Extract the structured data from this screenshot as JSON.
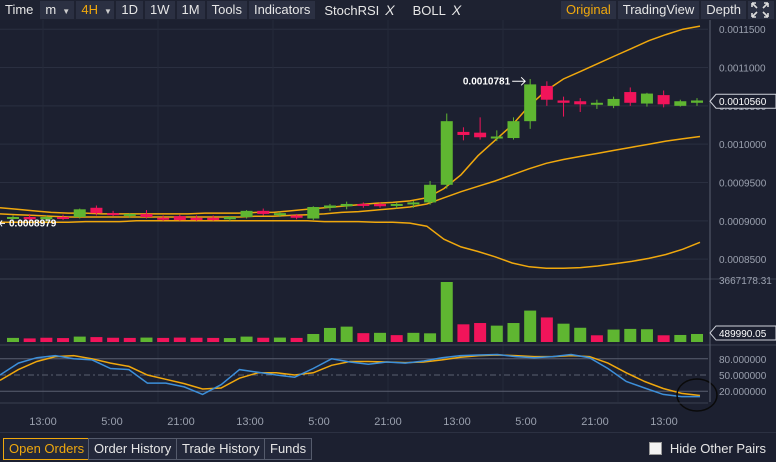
{
  "toolbar": {
    "time_label": "Time",
    "minute_label": "m",
    "interval_selected": "4H",
    "btn_1d": "1D",
    "btn_1w": "1W",
    "btn_1m": "1M",
    "tools": "Tools",
    "indicators": "Indicators",
    "stochrsi": "StochRSI",
    "boll": "BOLL",
    "remove_symbol": "X",
    "original": "Original",
    "tradingview": "TradingView",
    "depth": "Depth"
  },
  "colors": {
    "up": "#5fb631",
    "down": "#f1145a",
    "boll": "#f0a80d",
    "stoch_k": "#3d8fd9",
    "stoch_d": "#f0a80d",
    "accent": "#f0a80d"
  },
  "icons": {
    "fullscreen": "fullscreen-icon",
    "checkbox": "checkbox-icon"
  },
  "chart_data": [
    {
      "type": "candlestick",
      "name": "price",
      "y_ticks": [
        "0.0011500",
        "0.0011000",
        "0.0010500",
        "0.0010000",
        "0.0009500",
        "0.0009000",
        "0.0008500"
      ],
      "ylim": [
        0.000828,
        0.001162
      ],
      "current_price_label": "0.0010560",
      "high_annotation": "0.0010781",
      "low_annotation": "0.0008979",
      "candles": [
        {
          "o": 0.000903,
          "h": 0.000907,
          "l": 0.000899,
          "c": 0.000905
        },
        {
          "o": 0.000905,
          "h": 0.000909,
          "l": 0.0009,
          "c": 0.000902
        },
        {
          "o": 0.000902,
          "h": 0.000907,
          "l": 0.000899,
          "c": 0.000905
        },
        {
          "o": 0.000905,
          "h": 0.000908,
          "l": 0.000901,
          "c": 0.000903
        },
        {
          "o": 0.000905,
          "h": 0.000916,
          "l": 0.000903,
          "c": 0.000915
        },
        {
          "o": 0.000917,
          "h": 0.00092,
          "l": 0.000907,
          "c": 0.00091
        },
        {
          "o": 0.00091,
          "h": 0.000913,
          "l": 0.000906,
          "c": 0.000908
        },
        {
          "o": 0.000908,
          "h": 0.00091,
          "l": 0.000904,
          "c": 0.000909
        },
        {
          "o": 0.000909,
          "h": 0.000914,
          "l": 0.000903,
          "c": 0.000905
        },
        {
          "o": 0.000904,
          "h": 0.000907,
          "l": 0.0009,
          "c": 0.000903
        },
        {
          "o": 0.000906,
          "h": 0.000908,
          "l": 0.0009,
          "c": 0.000901
        },
        {
          "o": 0.000904,
          "h": 0.000907,
          "l": 0.0009,
          "c": 0.000901
        },
        {
          "o": 0.000904,
          "h": 0.000907,
          "l": 0.0009,
          "c": 0.000901
        },
        {
          "o": 0.000902,
          "h": 0.000906,
          "l": 0.0009,
          "c": 0.000905
        },
        {
          "o": 0.000905,
          "h": 0.000914,
          "l": 0.000903,
          "c": 0.000913
        },
        {
          "o": 0.000913,
          "h": 0.000916,
          "l": 0.000907,
          "c": 0.000909
        },
        {
          "o": 0.000909,
          "h": 0.000912,
          "l": 0.000905,
          "c": 0.00091
        },
        {
          "o": 0.000907,
          "h": 0.000909,
          "l": 0.000902,
          "c": 0.000904
        },
        {
          "o": 0.000903,
          "h": 0.000919,
          "l": 0.000901,
          "c": 0.000918
        },
        {
          "o": 0.000917,
          "h": 0.000922,
          "l": 0.000913,
          "c": 0.00092
        },
        {
          "o": 0.000919,
          "h": 0.000925,
          "l": 0.000915,
          "c": 0.000922
        },
        {
          "o": 0.000922,
          "h": 0.000924,
          "l": 0.000917,
          "c": 0.00092
        },
        {
          "o": 0.000922,
          "h": 0.000924,
          "l": 0.000917,
          "c": 0.000919
        },
        {
          "o": 0.00092,
          "h": 0.000924,
          "l": 0.000916,
          "c": 0.000922
        },
        {
          "o": 0.000922,
          "h": 0.000926,
          "l": 0.000917,
          "c": 0.000924
        },
        {
          "o": 0.000924,
          "h": 0.000952,
          "l": 0.000921,
          "c": 0.000947
        },
        {
          "o": 0.000947,
          "h": 0.00104,
          "l": 0.000942,
          "c": 0.00103
        },
        {
          "o": 0.001016,
          "h": 0.001022,
          "l": 0.001005,
          "c": 0.001012
        },
        {
          "o": 0.001015,
          "h": 0.001035,
          "l": 0.001006,
          "c": 0.001009
        },
        {
          "o": 0.001009,
          "h": 0.001018,
          "l": 0.001004,
          "c": 0.00101
        },
        {
          "o": 0.001008,
          "h": 0.001035,
          "l": 0.001006,
          "c": 0.00103
        },
        {
          "o": 0.00103,
          "h": 0.001085,
          "l": 0.00102,
          "c": 0.001078
        },
        {
          "o": 0.001076,
          "h": 0.001082,
          "l": 0.00105,
          "c": 0.001058
        },
        {
          "o": 0.001057,
          "h": 0.001062,
          "l": 0.001036,
          "c": 0.001054
        },
        {
          "o": 0.001056,
          "h": 0.00106,
          "l": 0.001042,
          "c": 0.001052
        },
        {
          "o": 0.001052,
          "h": 0.001058,
          "l": 0.001046,
          "c": 0.001054
        },
        {
          "o": 0.00105,
          "h": 0.001062,
          "l": 0.001047,
          "c": 0.001059
        },
        {
          "o": 0.001068,
          "h": 0.001074,
          "l": 0.00105,
          "c": 0.001054
        },
        {
          "o": 0.001053,
          "h": 0.001067,
          "l": 0.001049,
          "c": 0.001066
        },
        {
          "o": 0.001064,
          "h": 0.00107,
          "l": 0.001048,
          "c": 0.001052
        },
        {
          "o": 0.00105,
          "h": 0.001058,
          "l": 0.001049,
          "c": 0.001056
        },
        {
          "o": 0.001054,
          "h": 0.00106,
          "l": 0.00105,
          "c": 0.001057
        }
      ],
      "boll_upper": [
        0.000917,
        0.000915,
        0.000913,
        0.000911,
        0.00091,
        0.00091,
        0.000909,
        0.000909,
        0.000909,
        0.000909,
        0.000909,
        0.000909,
        0.00091,
        0.00091,
        0.00091,
        0.000911,
        0.000911,
        0.000913,
        0.000915,
        0.000917,
        0.000919,
        0.000921,
        0.000923,
        0.000924,
        0.000926,
        0.00093,
        0.000942,
        0.00096,
        0.000985,
        0.001005,
        0.001025,
        0.00105,
        0.00107,
        0.001085,
        0.001095,
        0.001105,
        0.001115,
        0.001125,
        0.001135,
        0.001143,
        0.00115,
        0.001154
      ],
      "boll_mid": [
        0.000909,
        0.000908,
        0.000907,
        0.000906,
        0.000905,
        0.000905,
        0.000905,
        0.000905,
        0.000905,
        0.000905,
        0.000905,
        0.000905,
        0.000905,
        0.000905,
        0.000905,
        0.000906,
        0.000906,
        0.000907,
        0.000908,
        0.000909,
        0.000911,
        0.000912,
        0.000914,
        0.000916,
        0.000918,
        0.000922,
        0.00093,
        0.000938,
        0.000945,
        0.000952,
        0.00096,
        0.000968,
        0.000975,
        0.00098,
        0.000984,
        0.000988,
        0.000992,
        0.000996,
        0.001,
        0.001004,
        0.001007,
        0.00101
      ],
      "boll_lower": [
        0.000898,
        0.000898,
        0.000898,
        0.000898,
        0.000898,
        0.000899,
        0.000899,
        0.000899,
        0.0009,
        0.0009,
        0.0009,
        0.0009,
        0.0009,
        0.0009,
        0.0009,
        0.0009,
        0.0009,
        0.0009,
        0.0009,
        0.000899,
        0.000899,
        0.000899,
        0.000898,
        0.000898,
        0.000897,
        0.000893,
        0.000876,
        0.000866,
        0.00086,
        0.000853,
        0.000845,
        0.00084,
        0.000838,
        0.000838,
        0.000839,
        0.000841,
        0.000844,
        0.000847,
        0.000851,
        0.000856,
        0.000863,
        0.000872
      ]
    },
    {
      "type": "bar",
      "name": "volume",
      "y_ticks": [
        "3667178.31"
      ],
      "ylim": [
        0,
        3667178.31
      ],
      "current_volume_label": "489990.05",
      "values": [
        250000,
        220000,
        260000,
        240000,
        330000,
        300000,
        260000,
        250000,
        270000,
        250000,
        270000,
        260000,
        250000,
        240000,
        330000,
        260000,
        270000,
        250000,
        490000,
        860000,
        940000,
        540000,
        560000,
        420000,
        560000,
        530000,
        3667178,
        1080000,
        1160000,
        1000000,
        1160000,
        1920000,
        1500000,
        1120000,
        870000,
        410000,
        760000,
        800000,
        780000,
        410000,
        430000,
        489990
      ],
      "colors": [
        "up",
        "down",
        "down",
        "down",
        "up",
        "down",
        "down",
        "down",
        "up",
        "down",
        "down",
        "down",
        "down",
        "up",
        "up",
        "down",
        "up",
        "down",
        "up",
        "up",
        "up",
        "down",
        "up",
        "down",
        "up",
        "up",
        "up",
        "down",
        "down",
        "up",
        "up",
        "up",
        "down",
        "up",
        "up",
        "down",
        "up",
        "up",
        "up",
        "down",
        "up",
        "up"
      ]
    },
    {
      "type": "line",
      "name": "StochRSI",
      "y_ticks": [
        "80.000000",
        "50.000000",
        "20.000000"
      ],
      "ylim": [
        0,
        100
      ],
      "k_values": [
        50,
        72,
        82,
        86,
        80,
        78,
        62,
        60,
        35,
        35,
        28,
        14,
        32,
        60,
        55,
        50,
        46,
        62,
        80,
        74,
        70,
        74,
        72,
        76,
        82,
        86,
        87,
        88,
        84,
        82,
        84,
        88,
        82,
        62,
        38,
        26,
        14,
        10,
        10
      ],
      "d_values": [
        40,
        60,
        75,
        84,
        86,
        80,
        72,
        66,
        50,
        42,
        34,
        24,
        26,
        44,
        54,
        54,
        50,
        54,
        68,
        75,
        75,
        74,
        73,
        74,
        78,
        83,
        86,
        87,
        86,
        84,
        84,
        86,
        84,
        72,
        54,
        38,
        25,
        16,
        12
      ]
    }
  ],
  "time_axis": [
    "13:00",
    "5:00",
    "21:00",
    "13:00",
    "5:00",
    "21:00",
    "13:00",
    "5:00",
    "21:00",
    "13:00"
  ],
  "bottom": {
    "open_orders": "Open Orders",
    "order_history": "Order History",
    "trade_history": "Trade History",
    "funds": "Funds",
    "hide_other_pairs": "Hide Other Pairs"
  }
}
